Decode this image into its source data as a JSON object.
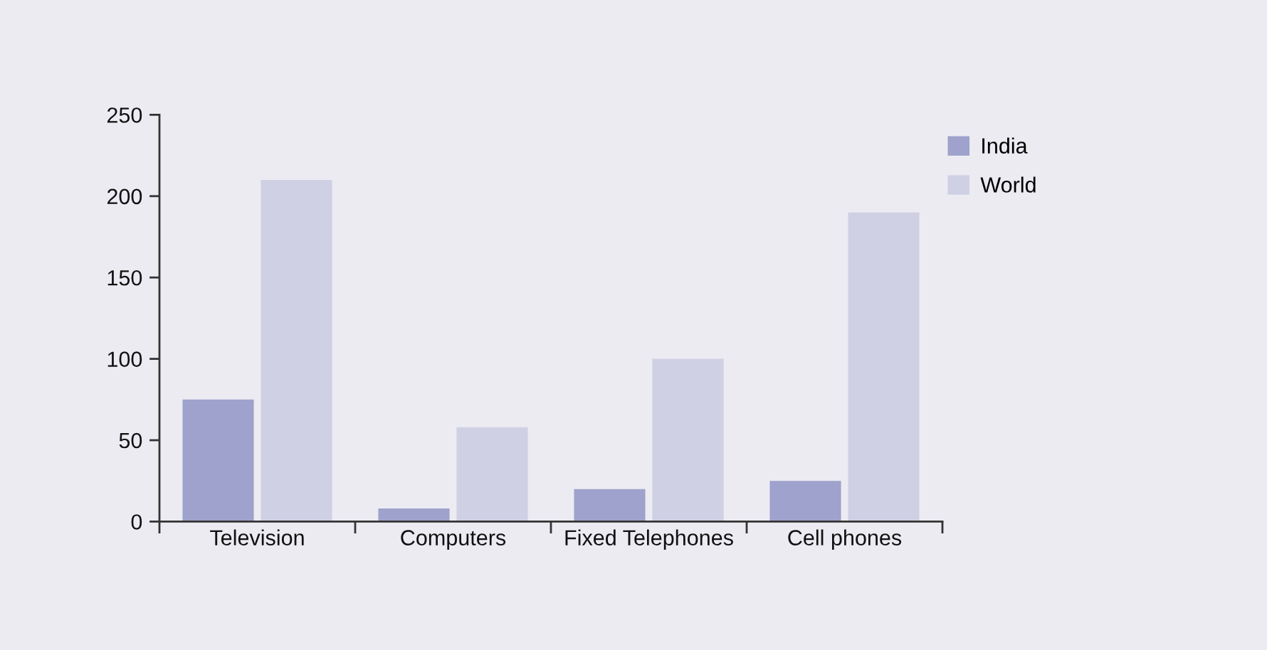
{
  "chart_data": {
    "type": "bar",
    "categories": [
      "Television",
      "Computers",
      "Fixed Telephones",
      "Cell phones"
    ],
    "series": [
      {
        "name": "India",
        "color": "#9ea2cc",
        "values": [
          75,
          8,
          20,
          25
        ]
      },
      {
        "name": "World",
        "color": "#cfd0e4",
        "values": [
          210,
          58,
          100,
          190
        ]
      }
    ],
    "ylim": [
      0,
      250
    ],
    "yticks": [
      0,
      50,
      100,
      150,
      200,
      250
    ],
    "grid": false,
    "legend": "top right"
  }
}
